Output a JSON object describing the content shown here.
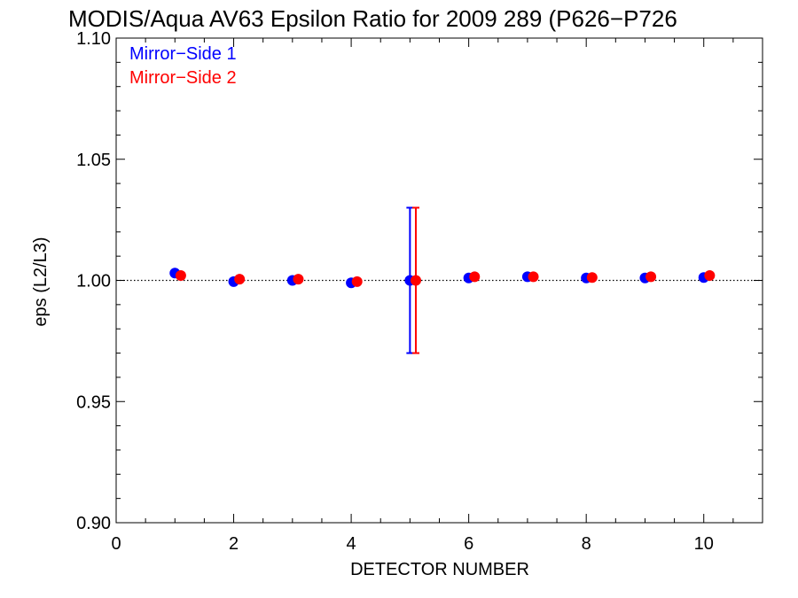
{
  "chart_data": {
    "type": "scatter",
    "title": "MODIS/Aqua AV63 Epsilon Ratio for 2009 289 (P626−P726",
    "xlabel": "DETECTOR NUMBER",
    "ylabel": "eps (L2/L3)",
    "xlim": [
      0,
      11
    ],
    "ylim": [
      0.9,
      1.1
    ],
    "x_ticks": [
      0,
      2,
      4,
      6,
      8,
      10
    ],
    "x_tick_labels": [
      "0",
      "2",
      "4",
      "6",
      "8",
      "10"
    ],
    "y_ticks": [
      0.9,
      0.95,
      1.0,
      1.05,
      1.1
    ],
    "y_tick_labels": [
      "0.90",
      "0.95",
      "1.00",
      "1.05",
      "1.10"
    ],
    "reference_line": 1.0,
    "legend_position": "top-left",
    "series": [
      {
        "name": "Mirror−Side 1",
        "color": "#0000ff",
        "x": [
          1,
          2,
          3,
          4,
          5,
          6,
          7,
          8,
          9,
          10
        ],
        "y": [
          1.003,
          0.9995,
          1.0,
          0.999,
          1.0,
          1.001,
          1.0015,
          1.001,
          1.001,
          1.0012
        ],
        "error_bar": {
          "x": 5,
          "low": 0.97,
          "high": 1.03
        }
      },
      {
        "name": "Mirror−Side 2",
        "color": "#ff0000",
        "x": [
          1.1,
          2.1,
          3.1,
          4.1,
          5.1,
          6.1,
          7.1,
          8.1,
          9.1,
          10.1
        ],
        "y": [
          1.002,
          1.0005,
          1.0005,
          0.9995,
          1.0,
          1.0015,
          1.0015,
          1.0012,
          1.0015,
          1.002
        ],
        "error_bar": {
          "x": 5.1,
          "low": 0.97,
          "high": 1.03
        }
      }
    ]
  }
}
